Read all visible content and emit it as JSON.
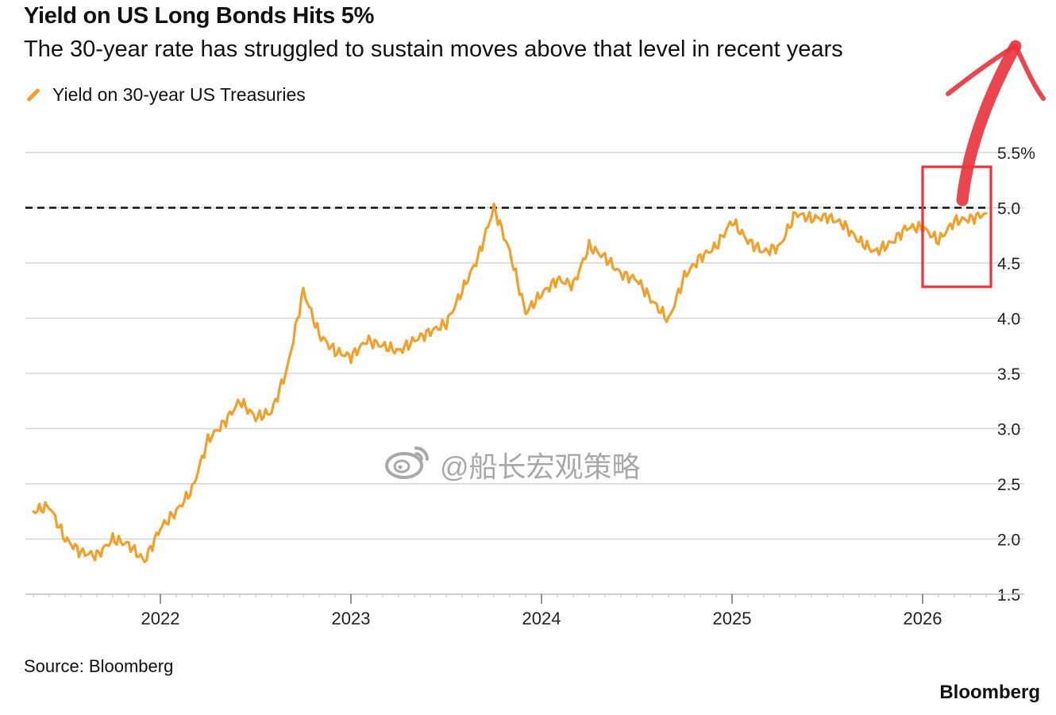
{
  "header": {
    "title": "Yield on US Long Bonds Hits 5%",
    "subtitle": "The 30-year rate has struggled to sustain moves above that level in recent years"
  },
  "legend": {
    "label": "Yield on 30-year US Treasuries"
  },
  "footer": {
    "source": "Source: Bloomberg",
    "brand": "Bloomberg"
  },
  "watermark": {
    "text": "@船长宏观策略",
    "icon": "weibo-logo"
  },
  "colors": {
    "series": "#f2a02c",
    "grid": "#d6d6d6",
    "reference": "#111111",
    "annotation": "#e8323c"
  },
  "chart_data": {
    "type": "line",
    "title": "Yield on US Long Bonds Hits 5%",
    "subtitle": "The 30-year rate has struggled to sustain moves above that level in recent years",
    "xlabel": "",
    "ylabel": "",
    "x_ticks": [
      "2022",
      "2023",
      "2024",
      "2025",
      "2026"
    ],
    "y_ticks": [
      "1.5",
      "2.0",
      "2.5",
      "3.0",
      "3.5",
      "4.0",
      "4.5",
      "5.0",
      "5.5%"
    ],
    "ylim": [
      1.5,
      5.5
    ],
    "xlim": [
      "2021-05",
      "2026-05"
    ],
    "grid": true,
    "legend_position": "top-left",
    "reference_line": {
      "y": 5.0,
      "style": "dashed"
    },
    "annotations": [
      {
        "type": "box",
        "label": "",
        "x_range": [
          "2026-01",
          "2026-04"
        ]
      },
      {
        "type": "arrow",
        "direction": "up",
        "label": ""
      }
    ],
    "series": [
      {
        "name": "Yield on 30-year US Treasuries",
        "points": [
          [
            "2021-05",
            2.25
          ],
          [
            "2021-06",
            2.3
          ],
          [
            "2021-07",
            2.0
          ],
          [
            "2021-08",
            1.88
          ],
          [
            "2021-09",
            1.85
          ],
          [
            "2021-10",
            2.0
          ],
          [
            "2021-11",
            1.95
          ],
          [
            "2021-12",
            1.8
          ],
          [
            "2022-01",
            2.1
          ],
          [
            "2022-02",
            2.25
          ],
          [
            "2022-03",
            2.45
          ],
          [
            "2022-04",
            2.9
          ],
          [
            "2022-05",
            3.05
          ],
          [
            "2022-06",
            3.25
          ],
          [
            "2022-07",
            3.1
          ],
          [
            "2022-08",
            3.15
          ],
          [
            "2022-09",
            3.55
          ],
          [
            "2022-10",
            4.25
          ],
          [
            "2022-11",
            3.85
          ],
          [
            "2022-12",
            3.7
          ],
          [
            "2023-01",
            3.65
          ],
          [
            "2023-02",
            3.8
          ],
          [
            "2023-03",
            3.75
          ],
          [
            "2023-04",
            3.7
          ],
          [
            "2023-05",
            3.8
          ],
          [
            "2023-06",
            3.88
          ],
          [
            "2023-07",
            3.95
          ],
          [
            "2023-08",
            4.25
          ],
          [
            "2023-09",
            4.55
          ],
          [
            "2023-10",
            5.0
          ],
          [
            "2023-11",
            4.6
          ],
          [
            "2023-12",
            4.05
          ],
          [
            "2024-01",
            4.22
          ],
          [
            "2024-02",
            4.35
          ],
          [
            "2024-03",
            4.3
          ],
          [
            "2024-04",
            4.65
          ],
          [
            "2024-05",
            4.55
          ],
          [
            "2024-06",
            4.4
          ],
          [
            "2024-07",
            4.35
          ],
          [
            "2024-08",
            4.15
          ],
          [
            "2024-09",
            3.98
          ],
          [
            "2024-10",
            4.38
          ],
          [
            "2024-11",
            4.55
          ],
          [
            "2024-12",
            4.65
          ],
          [
            "2025-01",
            4.88
          ],
          [
            "2025-02",
            4.7
          ],
          [
            "2025-03",
            4.6
          ],
          [
            "2025-04",
            4.65
          ],
          [
            "2025-05",
            4.95
          ],
          [
            "2025-06",
            4.9
          ],
          [
            "2025-07",
            4.92
          ],
          [
            "2025-08",
            4.85
          ],
          [
            "2025-09",
            4.7
          ],
          [
            "2025-10",
            4.6
          ],
          [
            "2025-11",
            4.68
          ],
          [
            "2025-12",
            4.82
          ],
          [
            "2026-01",
            4.82
          ],
          [
            "2026-02",
            4.7
          ],
          [
            "2026-03",
            4.88
          ],
          [
            "2026-04",
            4.9
          ],
          [
            "2026-05",
            4.95
          ]
        ]
      }
    ]
  }
}
